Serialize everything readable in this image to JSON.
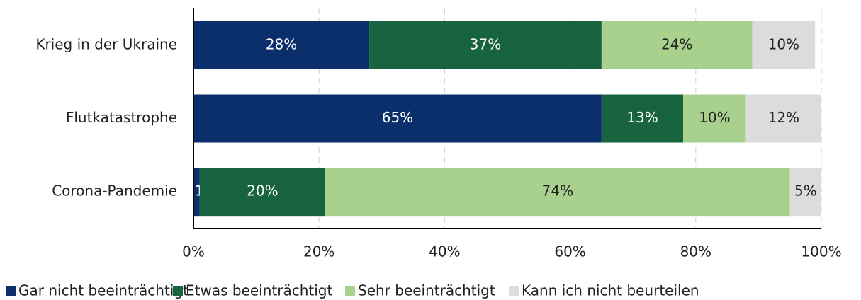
{
  "chart_data": {
    "type": "stacked_barh",
    "categories": [
      "Krieg in der Ukraine",
      "Flutkatastrophe",
      "Corona-Pandemie"
    ],
    "series": [
      {
        "name": "Gar nicht beeinträchtigt",
        "color": "#0b2f6b",
        "values": [
          28,
          65,
          1
        ],
        "value_labels": [
          "28%",
          "65%",
          "1%"
        ]
      },
      {
        "name": "Etwas beeinträchtigt",
        "color": "#17643f",
        "values": [
          37,
          13,
          20
        ],
        "value_labels": [
          "37%",
          "13%",
          "20%"
        ]
      },
      {
        "name": "Sehr beeinträchtigt",
        "color": "#a9d18e",
        "values": [
          24,
          10,
          74
        ],
        "value_labels": [
          "24%",
          "10%",
          "74%"
        ]
      },
      {
        "name": "Kann ich nicht beurteilen",
        "color": "#dcdcdc",
        "values": [
          10,
          12,
          5
        ],
        "value_labels": [
          "10%",
          "12%",
          "5%"
        ]
      }
    ],
    "xlim": [
      0,
      100
    ],
    "xticks": [
      {
        "value": 0,
        "label": "0%"
      },
      {
        "value": 20,
        "label": "20%"
      },
      {
        "value": 40,
        "label": "40%"
      },
      {
        "value": 60,
        "label": "60%"
      },
      {
        "value": 80,
        "label": "80%"
      },
      {
        "value": 100,
        "label": "100%"
      }
    ],
    "grid": true,
    "legend": "bottom"
  }
}
